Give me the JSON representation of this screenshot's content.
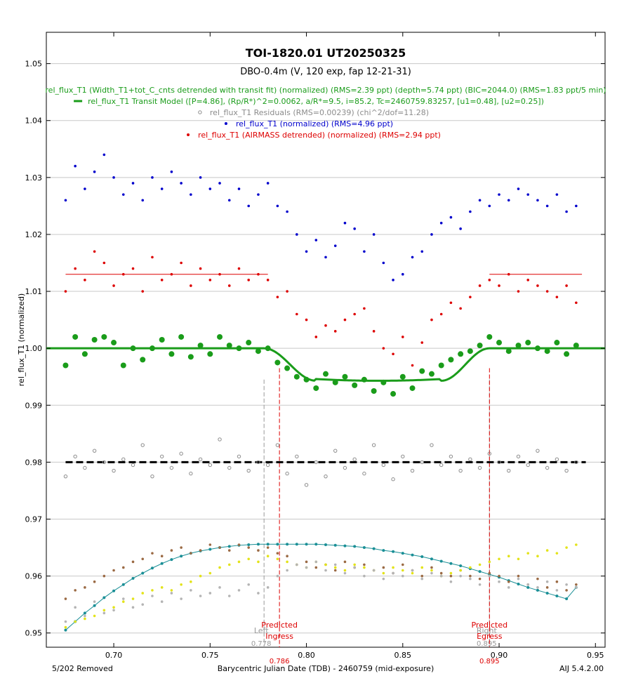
{
  "chart_data": {
    "type": "scatter",
    "title": "TOI-1820.01 UT20250325",
    "subtitle": "DBO-0.4m (V, 120 exp, fap 12-21-31)",
    "xlabel": "Barycentric Julian Date (TDB) - 2460759 (mid-exposure)",
    "ylabel": "rel_flux_T1 (normalized)",
    "xlim": [
      0.665,
      0.955
    ],
    "ylim": [
      0.9475,
      1.0555
    ],
    "x_ticks": [
      0.7,
      0.75,
      0.8,
      0.85,
      0.9,
      0.95
    ],
    "x_tick_labels": [
      "0.70",
      "0.75",
      "0.80",
      "0.85",
      "0.90",
      "0.95"
    ],
    "y_ticks": [
      0.95,
      0.96,
      0.97,
      0.98,
      0.99,
      1.0,
      1.01,
      1.02,
      1.03,
      1.04,
      1.05
    ],
    "y_tick_labels": [
      "0.95",
      "0.96",
      "0.97",
      "0.98",
      "0.99",
      "1.00",
      "1.01",
      "1.02",
      "1.03",
      "1.04",
      "1.05"
    ],
    "grid": true,
    "legend_placement": "top",
    "footer_left": "5/202 Removed",
    "footer_right": "AIJ 5.4.2.00",
    "legend": [
      {
        "label": "rel_flux_T1 (Width_T1+tot_C_cnts detrended with transit fit) (normalized) (RMS=2.39 ppt) (depth=5.74 ppt) (BIC=2044.0) (RMS=1.83 ppt/5 min)",
        "color": "#1a9c1a",
        "marker": "none"
      },
      {
        "label": "rel_flux_T1 Transit Model ([P=4.86], (Rp/R*)^2=0.0062, a/R*=9.5, i=85.2, Tc=2460759.83257, [u1=0.48], [u2=0.25])",
        "color": "#1a9c1a",
        "marker": "line"
      },
      {
        "label": "rel_flux_T1 Residuals (RMS=0.00239) (chi^2/dof=11.28)",
        "color": "#8c8c8c",
        "marker": "open-circle"
      },
      {
        "label": "rel_flux_T1 (normalized) (RMS=4.96 ppt)",
        "color": "#0000cc",
        "marker": "dot"
      },
      {
        "label": "rel_flux_T1 (AIRMASS detrended) (normalized) (RMS=2.94 ppt)",
        "color": "#dd0000",
        "marker": "dot"
      }
    ],
    "markers": [
      {
        "x": 0.778,
        "label": "Left",
        "value_label": "0.778",
        "color": "#999999"
      },
      {
        "x": 0.786,
        "label": "Predicted Ingress",
        "value_label": "0.786",
        "color": "#dd0000"
      },
      {
        "x": 0.895,
        "label": "Right",
        "value_label": "0.895",
        "color": "#999999"
      },
      {
        "x": 0.895,
        "label": "Predicted Egress",
        "value_label": "0.895",
        "color": "#dd0000"
      }
    ],
    "transit_model": {
      "color": "#1a9c1a",
      "baseline": 1.0,
      "depth": 0.0057,
      "t1": 0.778,
      "t2": 0.805,
      "t3": 0.87,
      "t4": 0.895,
      "x_range": [
        0.665,
        0.955
      ]
    },
    "residual_baseline": {
      "y": 0.98,
      "x_range": [
        0.675,
        0.945
      ],
      "color": "#000000"
    },
    "airmass_trend_segments": [
      {
        "x": [
          0.675,
          0.78
        ],
        "y": 1.013
      },
      {
        "x": [
          0.895,
          0.943
        ],
        "y": 1.013
      }
    ],
    "series": [
      {
        "name": "rel_flux_T1 (normalized)",
        "color": "#0000cc",
        "x": [
          0.675,
          0.68,
          0.685,
          0.69,
          0.695,
          0.7,
          0.705,
          0.71,
          0.715,
          0.72,
          0.725,
          0.73,
          0.735,
          0.74,
          0.745,
          0.75,
          0.755,
          0.76,
          0.765,
          0.77,
          0.775,
          0.78,
          0.785,
          0.79,
          0.795,
          0.8,
          0.805,
          0.81,
          0.815,
          0.82,
          0.825,
          0.83,
          0.835,
          0.84,
          0.845,
          0.85,
          0.855,
          0.86,
          0.865,
          0.87,
          0.875,
          0.88,
          0.885,
          0.89,
          0.895,
          0.9,
          0.905,
          0.91,
          0.915,
          0.92,
          0.925,
          0.93,
          0.935,
          0.94
        ],
        "y": [
          1.026,
          1.032,
          1.028,
          1.031,
          1.034,
          1.03,
          1.027,
          1.029,
          1.026,
          1.03,
          1.028,
          1.031,
          1.029,
          1.027,
          1.03,
          1.028,
          1.029,
          1.026,
          1.028,
          1.025,
          1.027,
          1.029,
          1.025,
          1.024,
          1.02,
          1.017,
          1.019,
          1.016,
          1.018,
          1.022,
          1.021,
          1.017,
          1.02,
          1.015,
          1.012,
          1.013,
          1.016,
          1.017,
          1.02,
          1.022,
          1.023,
          1.021,
          1.024,
          1.026,
          1.025,
          1.027,
          1.026,
          1.028,
          1.027,
          1.026,
          1.025,
          1.027,
          1.024,
          1.025
        ]
      },
      {
        "name": "rel_flux_T1 (AIRMASS detrended) (normalized)",
        "color": "#dd0000",
        "x": [
          0.675,
          0.68,
          0.685,
          0.69,
          0.695,
          0.7,
          0.705,
          0.71,
          0.715,
          0.72,
          0.725,
          0.73,
          0.735,
          0.74,
          0.745,
          0.75,
          0.755,
          0.76,
          0.765,
          0.77,
          0.775,
          0.78,
          0.785,
          0.79,
          0.795,
          0.8,
          0.805,
          0.81,
          0.815,
          0.82,
          0.825,
          0.83,
          0.835,
          0.84,
          0.845,
          0.85,
          0.855,
          0.86,
          0.865,
          0.87,
          0.875,
          0.88,
          0.885,
          0.89,
          0.895,
          0.9,
          0.905,
          0.91,
          0.915,
          0.92,
          0.925,
          0.93,
          0.935,
          0.94
        ],
        "y": [
          1.01,
          1.014,
          1.012,
          1.017,
          1.015,
          1.011,
          1.013,
          1.014,
          1.01,
          1.016,
          1.012,
          1.013,
          1.015,
          1.011,
          1.014,
          1.012,
          1.013,
          1.011,
          1.014,
          1.012,
          1.013,
          1.012,
          1.009,
          1.01,
          1.006,
          1.005,
          1.002,
          1.004,
          1.003,
          1.005,
          1.006,
          1.007,
          1.003,
          1.0,
          0.999,
          1.002,
          0.997,
          1.001,
          1.005,
          1.006,
          1.008,
          1.007,
          1.009,
          1.011,
          1.012,
          1.011,
          1.013,
          1.01,
          1.012,
          1.011,
          1.01,
          1.009,
          1.011,
          1.008
        ]
      },
      {
        "name": "rel_flux_T1 (Width_T1+tot_C_cnts detrended with transit fit) (normalized)",
        "color": "#1a9c1a",
        "x": [
          0.675,
          0.68,
          0.685,
          0.69,
          0.695,
          0.7,
          0.705,
          0.71,
          0.715,
          0.72,
          0.725,
          0.73,
          0.735,
          0.74,
          0.745,
          0.75,
          0.755,
          0.76,
          0.765,
          0.77,
          0.775,
          0.78,
          0.785,
          0.79,
          0.795,
          0.8,
          0.805,
          0.81,
          0.815,
          0.82,
          0.825,
          0.83,
          0.835,
          0.84,
          0.845,
          0.85,
          0.855,
          0.86,
          0.865,
          0.87,
          0.875,
          0.88,
          0.885,
          0.89,
          0.895,
          0.9,
          0.905,
          0.91,
          0.915,
          0.92,
          0.925,
          0.93,
          0.935,
          0.94
        ],
        "y": [
          0.997,
          1.002,
          0.999,
          1.0015,
          1.002,
          1.001,
          0.997,
          1.0,
          0.998,
          1.0,
          1.0015,
          0.999,
          1.002,
          0.9985,
          1.0005,
          0.999,
          1.002,
          1.0005,
          1.0,
          1.001,
          0.9995,
          1.0,
          0.9975,
          0.9965,
          0.995,
          0.9945,
          0.993,
          0.9955,
          0.994,
          0.995,
          0.9935,
          0.9945,
          0.9925,
          0.994,
          0.992,
          0.995,
          0.993,
          0.996,
          0.9955,
          0.997,
          0.998,
          0.999,
          0.9995,
          1.0005,
          1.002,
          1.001,
          0.9995,
          1.0005,
          1.001,
          1.0,
          0.9995,
          1.001,
          0.999,
          1.0005
        ]
      },
      {
        "name": "rel_flux_T1 Residuals",
        "color": "#8c8c8c",
        "x": [
          0.675,
          0.68,
          0.685,
          0.69,
          0.695,
          0.7,
          0.705,
          0.71,
          0.715,
          0.72,
          0.725,
          0.73,
          0.735,
          0.74,
          0.745,
          0.75,
          0.755,
          0.76,
          0.765,
          0.77,
          0.775,
          0.78,
          0.785,
          0.79,
          0.795,
          0.8,
          0.805,
          0.81,
          0.815,
          0.82,
          0.825,
          0.83,
          0.835,
          0.84,
          0.845,
          0.85,
          0.855,
          0.86,
          0.865,
          0.87,
          0.875,
          0.88,
          0.885,
          0.89,
          0.895,
          0.9,
          0.905,
          0.91,
          0.915,
          0.92,
          0.925,
          0.93,
          0.935,
          0.94
        ],
        "y": [
          0.9775,
          0.981,
          0.979,
          0.982,
          0.98,
          0.9785,
          0.9805,
          0.9795,
          0.983,
          0.9775,
          0.981,
          0.979,
          0.9815,
          0.978,
          0.9805,
          0.9795,
          0.984,
          0.979,
          0.981,
          0.9785,
          0.98,
          0.9795,
          0.983,
          0.978,
          0.981,
          0.976,
          0.98,
          0.9775,
          0.982,
          0.979,
          0.9805,
          0.978,
          0.983,
          0.9795,
          0.977,
          0.981,
          0.9785,
          0.98,
          0.983,
          0.9795,
          0.981,
          0.9785,
          0.9805,
          0.979,
          0.9815,
          0.98,
          0.9785,
          0.981,
          0.9795,
          0.982,
          0.979,
          0.9805,
          0.9785,
          0.98
        ]
      },
      {
        "name": "airmass",
        "color": "#1a8f96",
        "x": [
          0.675,
          0.68,
          0.685,
          0.69,
          0.695,
          0.7,
          0.705,
          0.71,
          0.715,
          0.72,
          0.725,
          0.73,
          0.735,
          0.74,
          0.745,
          0.75,
          0.755,
          0.76,
          0.765,
          0.77,
          0.775,
          0.78,
          0.785,
          0.79,
          0.795,
          0.8,
          0.805,
          0.81,
          0.815,
          0.82,
          0.825,
          0.83,
          0.835,
          0.84,
          0.845,
          0.85,
          0.855,
          0.86,
          0.865,
          0.87,
          0.875,
          0.88,
          0.885,
          0.89,
          0.895,
          0.9,
          0.905,
          0.91,
          0.915,
          0.92,
          0.925,
          0.93,
          0.935,
          0.94
        ],
        "y": [
          0.9505,
          0.952,
          0.9535,
          0.9548,
          0.9562,
          0.9574,
          0.9585,
          0.9596,
          0.9605,
          0.9614,
          0.9622,
          0.9629,
          0.9635,
          0.964,
          0.9644,
          0.9647,
          0.965,
          0.9652,
          0.9654,
          0.9655,
          0.9656,
          0.9656,
          0.9656,
          0.9656,
          0.9656,
          0.9656,
          0.9656,
          0.9655,
          0.9654,
          0.9653,
          0.9652,
          0.965,
          0.9648,
          0.9645,
          0.9643,
          0.964,
          0.9637,
          0.9634,
          0.963,
          0.9626,
          0.9622,
          0.9618,
          0.9613,
          0.9608,
          0.9603,
          0.9598,
          0.9592,
          0.9586,
          0.958,
          0.9575,
          0.957,
          0.9565,
          0.956,
          0.958
        ]
      },
      {
        "name": "comparison brown",
        "color": "#9b6a44",
        "x": [
          0.675,
          0.68,
          0.685,
          0.69,
          0.695,
          0.7,
          0.705,
          0.71,
          0.715,
          0.72,
          0.725,
          0.73,
          0.735,
          0.74,
          0.745,
          0.75,
          0.755,
          0.76,
          0.765,
          0.77,
          0.775,
          0.78,
          0.785,
          0.79,
          0.795,
          0.8,
          0.805,
          0.81,
          0.815,
          0.82,
          0.825,
          0.83,
          0.835,
          0.84,
          0.845,
          0.85,
          0.855,
          0.86,
          0.865,
          0.87,
          0.875,
          0.88,
          0.885,
          0.89,
          0.895,
          0.9,
          0.905,
          0.91,
          0.915,
          0.92,
          0.925,
          0.93,
          0.935,
          0.94
        ],
        "y": [
          0.956,
          0.9575,
          0.958,
          0.959,
          0.96,
          0.961,
          0.9615,
          0.9625,
          0.963,
          0.964,
          0.9635,
          0.9645,
          0.965,
          0.964,
          0.9645,
          0.9655,
          0.965,
          0.9645,
          0.9655,
          0.965,
          0.9645,
          0.965,
          0.964,
          0.9635,
          0.962,
          0.9625,
          0.9615,
          0.962,
          0.961,
          0.9625,
          0.9615,
          0.962,
          0.961,
          0.9615,
          0.9605,
          0.962,
          0.961,
          0.96,
          0.9615,
          0.9605,
          0.96,
          0.961,
          0.96,
          0.9595,
          0.9605,
          0.96,
          0.959,
          0.96,
          0.9585,
          0.9595,
          0.958,
          0.959,
          0.9575,
          0.9585
        ]
      },
      {
        "name": "comparison yellow",
        "color": "#e3e31a",
        "x": [
          0.675,
          0.68,
          0.685,
          0.69,
          0.695,
          0.7,
          0.705,
          0.71,
          0.715,
          0.72,
          0.725,
          0.73,
          0.735,
          0.74,
          0.745,
          0.75,
          0.755,
          0.76,
          0.765,
          0.77,
          0.775,
          0.78,
          0.785,
          0.79,
          0.795,
          0.8,
          0.805,
          0.81,
          0.815,
          0.82,
          0.825,
          0.83,
          0.835,
          0.84,
          0.845,
          0.85,
          0.855,
          0.86,
          0.865,
          0.87,
          0.875,
          0.88,
          0.885,
          0.89,
          0.895,
          0.9,
          0.905,
          0.91,
          0.915,
          0.92,
          0.925,
          0.93,
          0.935,
          0.94
        ],
        "y": [
          0.951,
          0.952,
          0.9525,
          0.953,
          0.954,
          0.9545,
          0.9555,
          0.956,
          0.957,
          0.9575,
          0.958,
          0.9575,
          0.9585,
          0.959,
          0.96,
          0.9605,
          0.9615,
          0.962,
          0.9625,
          0.963,
          0.9625,
          0.9635,
          0.963,
          0.9625,
          0.962,
          0.9615,
          0.9625,
          0.962,
          0.9615,
          0.961,
          0.962,
          0.9615,
          0.961,
          0.9605,
          0.9615,
          0.961,
          0.9605,
          0.9615,
          0.961,
          0.96,
          0.9605,
          0.961,
          0.9615,
          0.962,
          0.9625,
          0.963,
          0.9635,
          0.963,
          0.964,
          0.9635,
          0.9645,
          0.964,
          0.965,
          0.9655
        ]
      },
      {
        "name": "comparison gray",
        "color": "#b4b4b4",
        "x": [
          0.675,
          0.68,
          0.685,
          0.69,
          0.695,
          0.7,
          0.705,
          0.71,
          0.715,
          0.72,
          0.725,
          0.73,
          0.735,
          0.74,
          0.745,
          0.75,
          0.755,
          0.76,
          0.765,
          0.77,
          0.775,
          0.78,
          0.785,
          0.79,
          0.795,
          0.8,
          0.805,
          0.81,
          0.815,
          0.82,
          0.825,
          0.83,
          0.835,
          0.84,
          0.845,
          0.85,
          0.855,
          0.86,
          0.865,
          0.87,
          0.875,
          0.88,
          0.885,
          0.89,
          0.895,
          0.9,
          0.905,
          0.91,
          0.915,
          0.92,
          0.925,
          0.93,
          0.935,
          0.94
        ],
        "y": [
          0.952,
          0.9545,
          0.953,
          0.9555,
          0.9535,
          0.954,
          0.956,
          0.9545,
          0.955,
          0.9565,
          0.9555,
          0.957,
          0.956,
          0.9575,
          0.9565,
          0.957,
          0.958,
          0.9565,
          0.9575,
          0.9585,
          0.957,
          0.958,
          0.96,
          0.961,
          0.962,
          0.9615,
          0.9625,
          0.961,
          0.962,
          0.9605,
          0.9615,
          0.96,
          0.961,
          0.9595,
          0.9605,
          0.96,
          0.961,
          0.9595,
          0.9605,
          0.96,
          0.959,
          0.96,
          0.9595,
          0.9585,
          0.96,
          0.959,
          0.958,
          0.9595,
          0.9585,
          0.958,
          0.959,
          0.9575,
          0.9585,
          0.958
        ]
      }
    ]
  }
}
